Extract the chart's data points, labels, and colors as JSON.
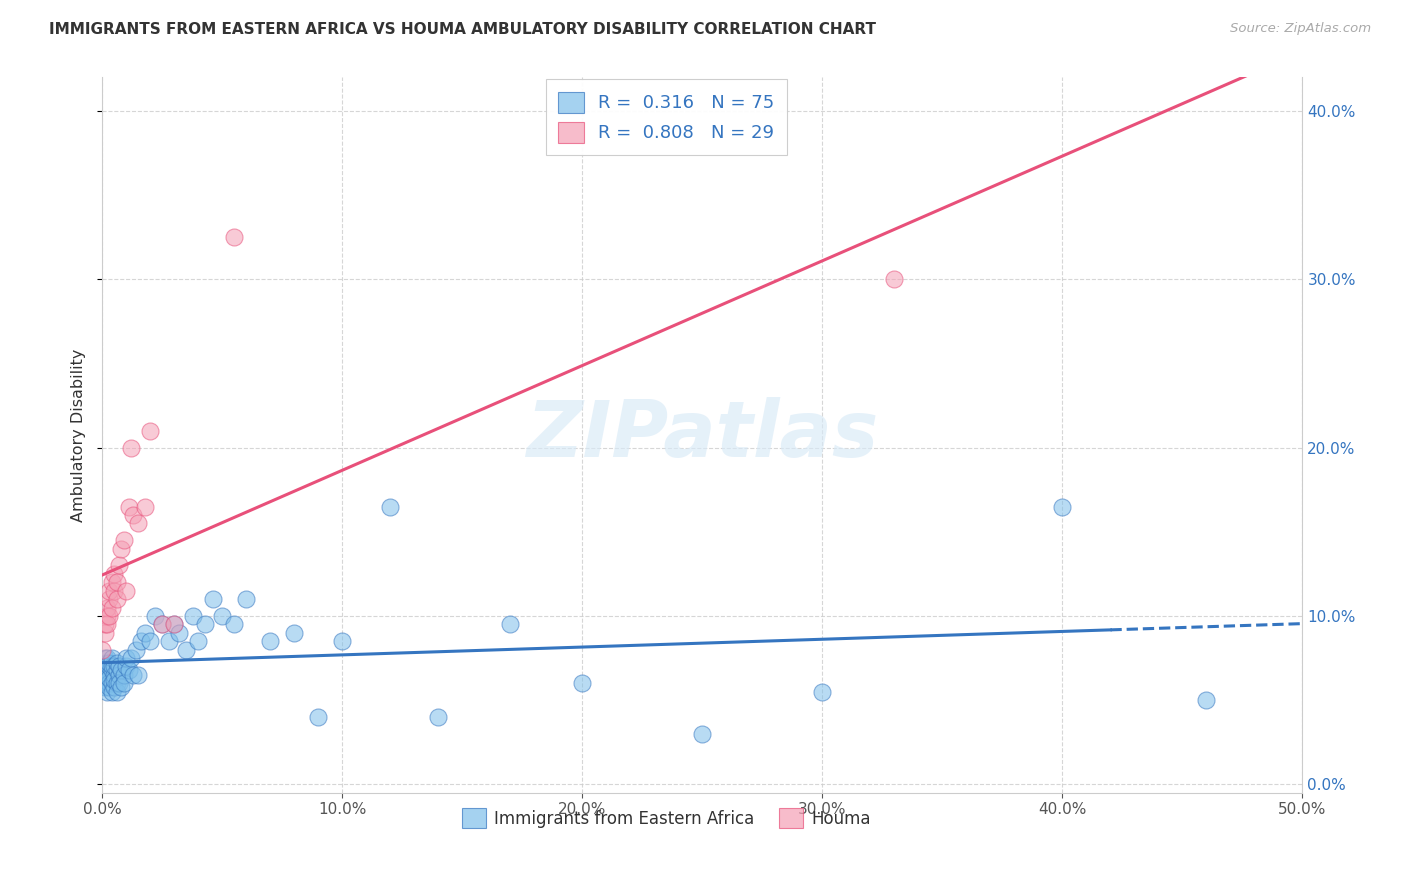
{
  "title": "IMMIGRANTS FROM EASTERN AFRICA VS HOUMA AMBULATORY DISABILITY CORRELATION CHART",
  "source": "Source: ZipAtlas.com",
  "ylabel": "Ambulatory Disability",
  "legend_label1": "Immigrants from Eastern Africa",
  "legend_label2": "Houma",
  "R1": 0.316,
  "N1": 75,
  "R2": 0.808,
  "N2": 29,
  "xlim": [
    0.0,
    0.5
  ],
  "ylim": [
    -0.005,
    0.42
  ],
  "xticks": [
    0.0,
    0.1,
    0.2,
    0.3,
    0.4,
    0.5
  ],
  "yticks": [
    0.0,
    0.1,
    0.2,
    0.3,
    0.4
  ],
  "color_blue": "#7fbfea",
  "color_pink": "#f4a0b5",
  "line_color_blue": "#3575c0",
  "line_color_pink": "#e8507a",
  "watermark": "ZIPatlas",
  "blue_x": [
    0.0,
    0.001,
    0.001,
    0.001,
    0.001,
    0.001,
    0.001,
    0.002,
    0.002,
    0.002,
    0.002,
    0.002,
    0.002,
    0.002,
    0.003,
    0.003,
    0.003,
    0.003,
    0.003,
    0.003,
    0.004,
    0.004,
    0.004,
    0.004,
    0.004,
    0.005,
    0.005,
    0.005,
    0.005,
    0.006,
    0.006,
    0.006,
    0.006,
    0.007,
    0.007,
    0.007,
    0.008,
    0.008,
    0.009,
    0.009,
    0.01,
    0.01,
    0.011,
    0.012,
    0.013,
    0.014,
    0.015,
    0.016,
    0.018,
    0.02,
    0.022,
    0.025,
    0.028,
    0.03,
    0.032,
    0.035,
    0.038,
    0.04,
    0.043,
    0.046,
    0.05,
    0.055,
    0.06,
    0.07,
    0.08,
    0.09,
    0.1,
    0.12,
    0.14,
    0.17,
    0.2,
    0.25,
    0.3,
    0.4,
    0.46
  ],
  "blue_y": [
    0.062,
    0.068,
    0.072,
    0.075,
    0.065,
    0.058,
    0.07,
    0.065,
    0.072,
    0.07,
    0.06,
    0.068,
    0.075,
    0.055,
    0.065,
    0.07,
    0.06,
    0.072,
    0.058,
    0.063,
    0.068,
    0.07,
    0.06,
    0.075,
    0.055,
    0.065,
    0.07,
    0.058,
    0.062,
    0.068,
    0.072,
    0.06,
    0.055,
    0.065,
    0.07,
    0.06,
    0.068,
    0.058,
    0.065,
    0.06,
    0.07,
    0.075,
    0.068,
    0.075,
    0.065,
    0.08,
    0.065,
    0.085,
    0.09,
    0.085,
    0.1,
    0.095,
    0.085,
    0.095,
    0.09,
    0.08,
    0.1,
    0.085,
    0.095,
    0.11,
    0.1,
    0.095,
    0.11,
    0.085,
    0.09,
    0.04,
    0.085,
    0.165,
    0.04,
    0.095,
    0.06,
    0.03,
    0.055,
    0.165,
    0.05
  ],
  "pink_x": [
    0.0,
    0.001,
    0.001,
    0.002,
    0.002,
    0.002,
    0.003,
    0.003,
    0.003,
    0.004,
    0.004,
    0.005,
    0.005,
    0.006,
    0.006,
    0.007,
    0.008,
    0.009,
    0.01,
    0.011,
    0.012,
    0.013,
    0.015,
    0.018,
    0.02,
    0.025,
    0.03,
    0.055,
    0.33
  ],
  "pink_y": [
    0.08,
    0.09,
    0.095,
    0.1,
    0.105,
    0.095,
    0.1,
    0.11,
    0.115,
    0.105,
    0.12,
    0.115,
    0.125,
    0.11,
    0.12,
    0.13,
    0.14,
    0.145,
    0.115,
    0.165,
    0.2,
    0.16,
    0.155,
    0.165,
    0.21,
    0.095,
    0.095,
    0.325,
    0.3
  ]
}
